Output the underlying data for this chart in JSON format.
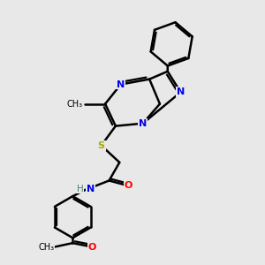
{
  "bg_color": "#e8e8e8",
  "bond_color": "#000000",
  "bond_width": 1.8,
  "N_color": "#0000EE",
  "O_color": "#FF0000",
  "S_color": "#AAAA00",
  "H_color": "#4A8080",
  "figsize": [
    3.0,
    3.0
  ],
  "dpi": 100,
  "xlim": [
    0,
    10
  ],
  "ylim": [
    0,
    10
  ]
}
